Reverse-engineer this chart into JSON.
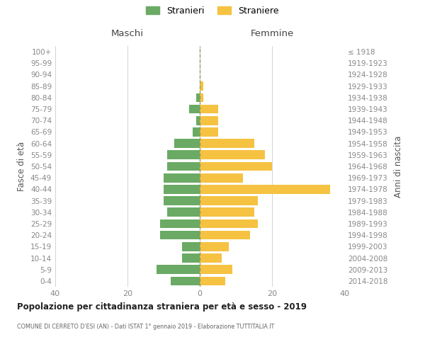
{
  "age_groups": [
    "0-4",
    "5-9",
    "10-14",
    "15-19",
    "20-24",
    "25-29",
    "30-34",
    "35-39",
    "40-44",
    "45-49",
    "50-54",
    "55-59",
    "60-64",
    "65-69",
    "70-74",
    "75-79",
    "80-84",
    "85-89",
    "90-94",
    "95-99",
    "100+"
  ],
  "birth_years": [
    "2014-2018",
    "2009-2013",
    "2004-2008",
    "1999-2003",
    "1994-1998",
    "1989-1993",
    "1984-1988",
    "1979-1983",
    "1974-1978",
    "1969-1973",
    "1964-1968",
    "1959-1963",
    "1954-1958",
    "1949-1953",
    "1944-1948",
    "1939-1943",
    "1934-1938",
    "1929-1933",
    "1924-1928",
    "1919-1923",
    "≤ 1918"
  ],
  "maschi": [
    8,
    12,
    5,
    5,
    11,
    11,
    9,
    10,
    10,
    10,
    9,
    9,
    7,
    2,
    1,
    3,
    1,
    0,
    0,
    0,
    0
  ],
  "femmine": [
    7,
    9,
    6,
    8,
    14,
    16,
    15,
    16,
    36,
    12,
    20,
    18,
    15,
    5,
    5,
    5,
    1,
    1,
    0,
    0,
    0
  ],
  "color_maschi": "#6aaa64",
  "color_femmine": "#f5c242",
  "title": "Popolazione per cittadinanza straniera per età e sesso - 2019",
  "subtitle": "COMUNE DI CERRETO D'ESI (AN) - Dati ISTAT 1° gennaio 2019 - Elaborazione TUTTITALIA.IT",
  "label_maschi": "Maschi",
  "label_femmine": "Femmine",
  "ylabel_left": "Fasce di età",
  "ylabel_right": "Anni di nascita",
  "legend_maschi": "Stranieri",
  "legend_femmine": "Straniere",
  "xlim": 40,
  "background_color": "#ffffff",
  "grid_color": "#cccccc"
}
